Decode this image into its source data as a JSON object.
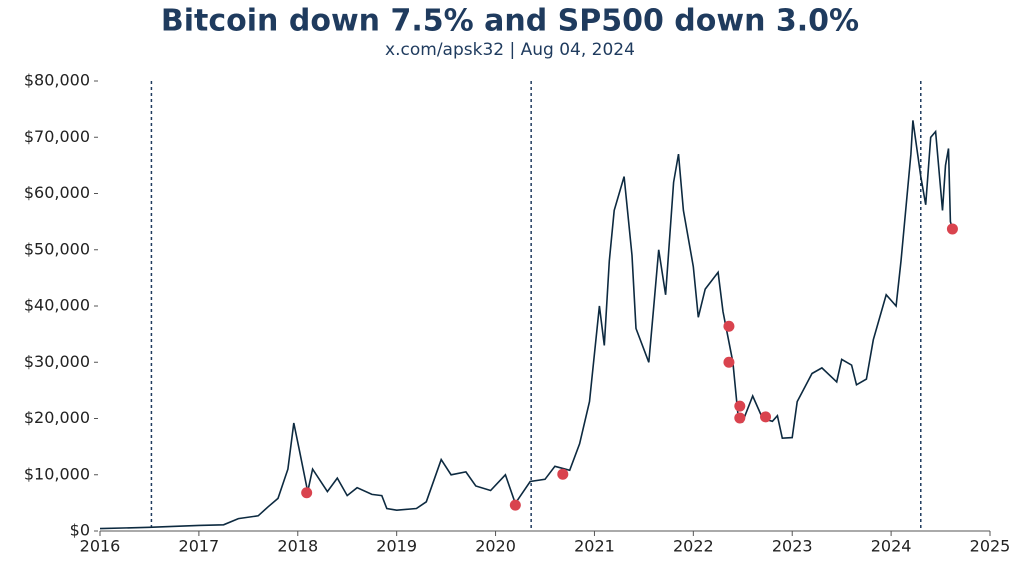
{
  "chart_data": {
    "type": "line",
    "title": "Bitcoin down 7.5% and SP500 down 3.0%",
    "subtitle": "x.com/apsk32 | Aug 04, 2024",
    "x": [
      2016.0,
      2016.5,
      2017.0,
      2017.25,
      2017.4,
      2017.6,
      2017.7,
      2017.8,
      2017.9,
      2017.96,
      2018.02,
      2018.1,
      2018.15,
      2018.3,
      2018.4,
      2018.5,
      2018.6,
      2018.75,
      2018.85,
      2018.9,
      2019.0,
      2019.2,
      2019.3,
      2019.45,
      2019.55,
      2019.7,
      2019.8,
      2019.95,
      2020.1,
      2020.2,
      2020.35,
      2020.5,
      2020.6,
      2020.75,
      2020.85,
      2020.95,
      2021.05,
      2021.1,
      2021.15,
      2021.2,
      2021.3,
      2021.38,
      2021.42,
      2021.55,
      2021.6,
      2021.65,
      2021.72,
      2021.8,
      2021.85,
      2021.9,
      2022.0,
      2022.05,
      2022.12,
      2022.25,
      2022.3,
      2022.4,
      2022.45,
      2022.5,
      2022.6,
      2022.7,
      2022.8,
      2022.85,
      2022.9,
      2023.0,
      2023.05,
      2023.2,
      2023.3,
      2023.45,
      2023.5,
      2023.6,
      2023.65,
      2023.75,
      2023.82,
      2023.95,
      2024.05,
      2024.1,
      2024.2,
      2024.22,
      2024.3,
      2024.35,
      2024.4,
      2024.45,
      2024.52,
      2024.55,
      2024.58,
      2024.6,
      2024.62
    ],
    "series": [
      {
        "color": "#0d2a40",
        "values": [
          430,
          650,
          1000,
          1100,
          2200,
          2700,
          4300,
          5800,
          11000,
          19200,
          14000,
          7000,
          11000,
          7000,
          9400,
          6300,
          7700,
          6500,
          6300,
          4000,
          3700,
          4000,
          5200,
          12700,
          10000,
          10500,
          8000,
          7200,
          10000,
          4900,
          8800,
          9200,
          11500,
          10800,
          15500,
          23000,
          40000,
          33000,
          48000,
          57000,
          63000,
          49000,
          36000,
          30000,
          40000,
          50000,
          42000,
          62000,
          67000,
          57000,
          47000,
          38000,
          43000,
          46000,
          39000,
          30000,
          21000,
          19500,
          24000,
          20000,
          19500,
          20500,
          16500,
          16600,
          23000,
          28000,
          29000,
          26500,
          30500,
          29500,
          26000,
          27000,
          34000,
          42000,
          40000,
          48000,
          67000,
          73000,
          63000,
          58000,
          70000,
          71000,
          57000,
          65000,
          68000,
          55000,
          53700
        ]
      }
    ],
    "events": {
      "color": "#d9434e",
      "x": [
        2018.09,
        2020.2,
        2020.68,
        2022.36,
        2022.36,
        2022.47,
        2022.47,
        2022.73,
        2024.62
      ],
      "values": [
        6800,
        4600,
        10100,
        36400,
        30000,
        22200,
        20100,
        20300,
        53700
      ]
    },
    "vlines": [
      2016.52,
      2020.36,
      2024.3
    ],
    "xlim": [
      2016,
      2025
    ],
    "xticks": [
      2016,
      2017,
      2018,
      2019,
      2020,
      2021,
      2022,
      2023,
      2024,
      2025
    ],
    "ylim": [
      0,
      80000
    ],
    "yticks": [
      {
        "value": 0,
        "label": "$0"
      },
      {
        "value": 10000,
        "label": "$10,000"
      },
      {
        "value": 20000,
        "label": "$20,000"
      },
      {
        "value": 30000,
        "label": "$30,000"
      },
      {
        "value": 40000,
        "label": "$40,000"
      },
      {
        "value": 50000,
        "label": "$50,000"
      },
      {
        "value": 60000,
        "label": "$60,000"
      },
      {
        "value": 70000,
        "label": "$70,000"
      },
      {
        "value": 80000,
        "label": "$80,000"
      }
    ]
  }
}
